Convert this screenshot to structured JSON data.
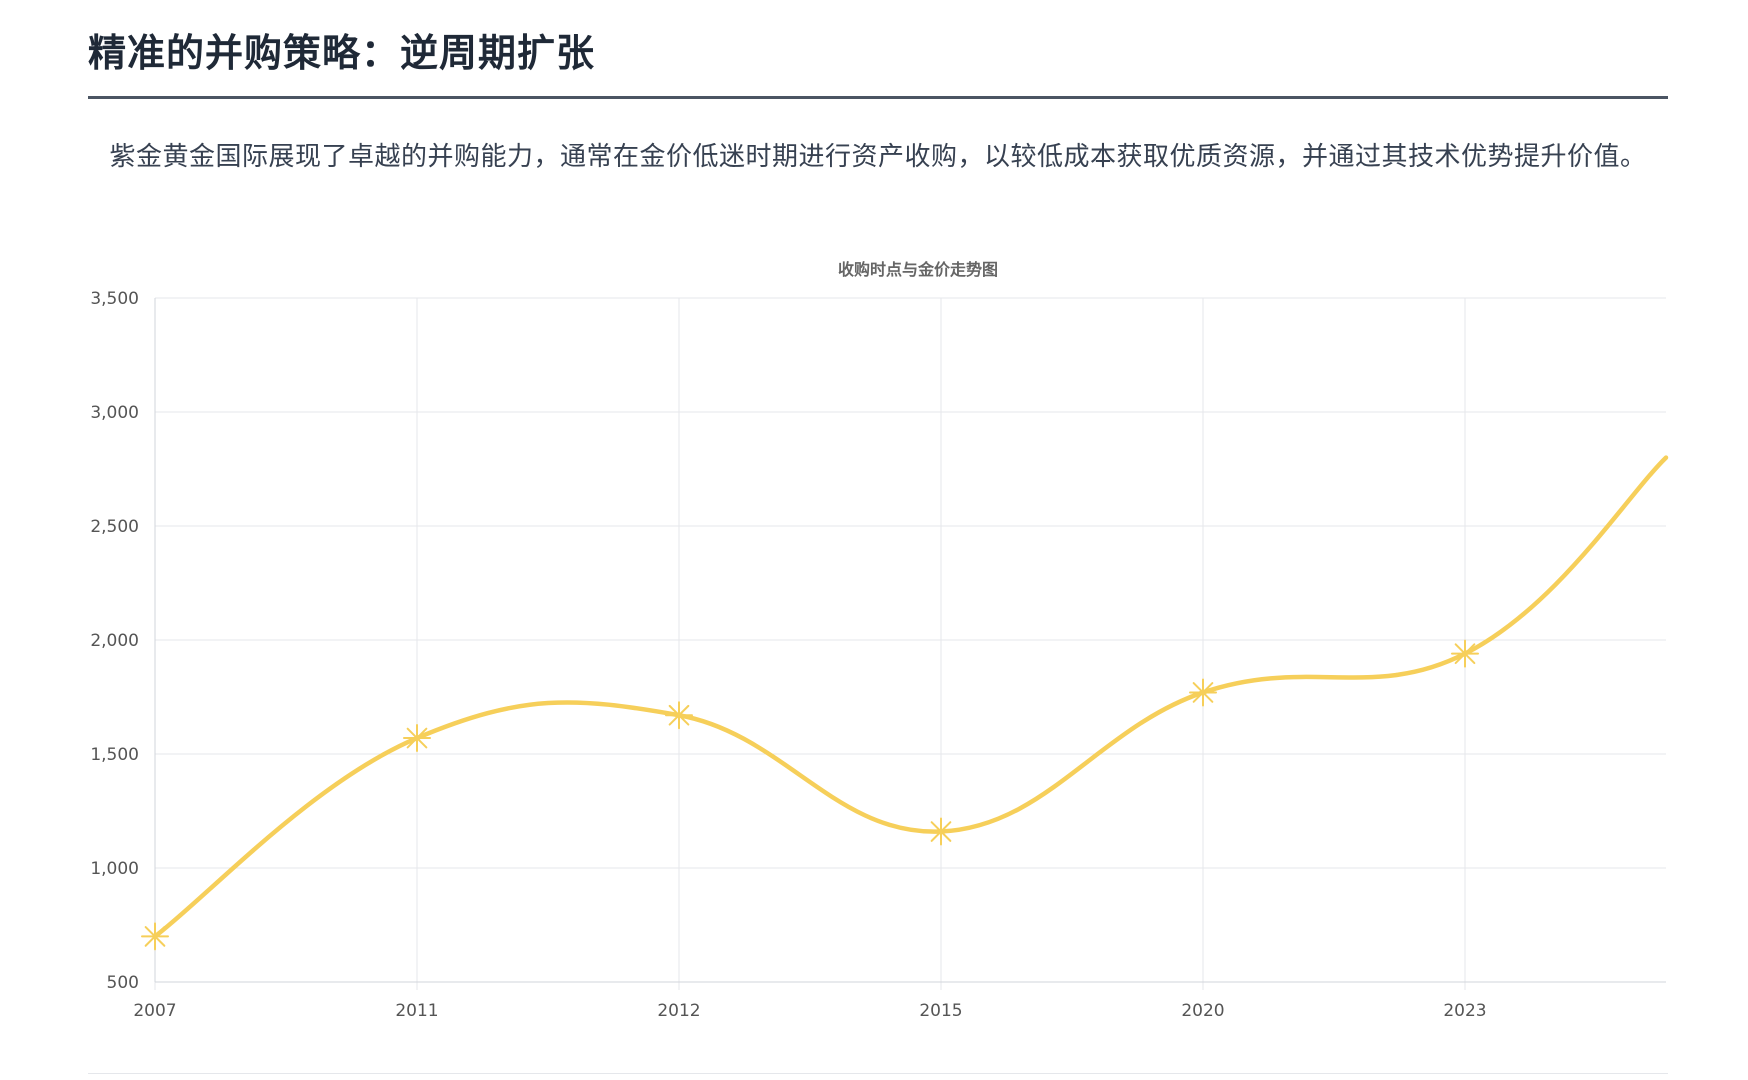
{
  "page": {
    "title": "精准的并购策略：逆周期扩张",
    "description": "紫金黄金国际展现了卓越的并购能力，通常在金价低迷时期进行资产收购，以较低成本获取优质资源，并通过其技术优势提升价值。"
  },
  "chart_data": {
    "type": "line",
    "title": "收购时点与金价走势图",
    "xlabel": "",
    "ylabel": "",
    "categories": [
      "2007",
      "2011",
      "2012",
      "2015",
      "2020",
      "2023"
    ],
    "series": [
      {
        "values": [
          700,
          1570,
          1670,
          1160,
          1770,
          1940
        ],
        "trailing_value": 2800,
        "color": "#f6cf5a",
        "marker": "asterisk"
      }
    ],
    "ylim": [
      500,
      3500
    ],
    "yticks": [
      500,
      1000,
      1500,
      2000,
      2500,
      3000,
      3500
    ],
    "ytick_labels": [
      "500",
      "1,000",
      "1,500",
      "2,000",
      "2,500",
      "3,000",
      "3,500"
    ],
    "grid": true,
    "legend": "none",
    "colors": {
      "line": "#f6cf5a",
      "grid": "#e5e7eb",
      "axis_text": "#555555",
      "title_text": "#666666"
    }
  }
}
